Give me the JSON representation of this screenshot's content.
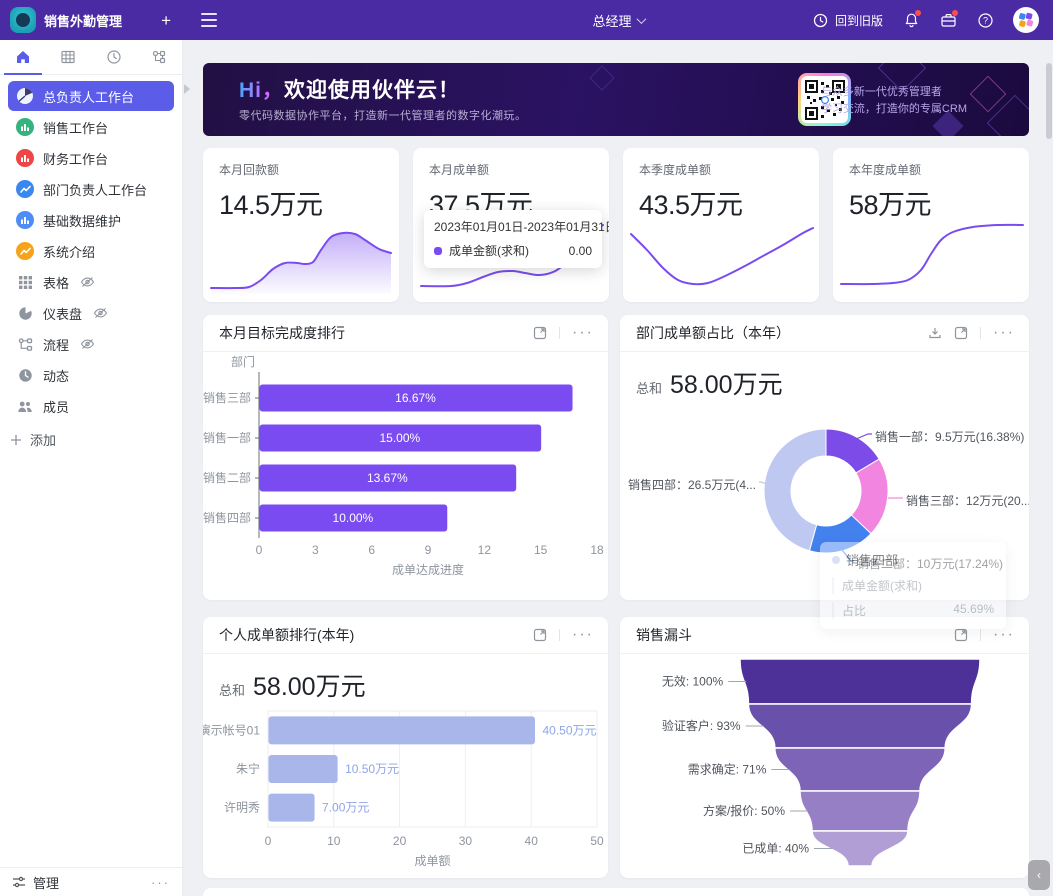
{
  "topbar": {
    "app_title": "销售外勤管理",
    "role": "总经理",
    "back_to_old_label": "回到旧版"
  },
  "sidebar": {
    "tabs": [
      {
        "name": "home",
        "active": true
      },
      {
        "name": "table",
        "active": false
      },
      {
        "name": "clock",
        "active": false
      },
      {
        "name": "flow",
        "active": false
      }
    ],
    "items": [
      {
        "label": "总负责人工作台",
        "icon": "pie-white",
        "bg": "#5b5ce8",
        "active": true,
        "eye": false
      },
      {
        "label": "销售工作台",
        "icon": "bars",
        "bg": "#35b37e",
        "active": false,
        "eye": false
      },
      {
        "label": "财务工作台",
        "icon": "bars",
        "bg": "#ee4646",
        "active": false,
        "eye": false
      },
      {
        "label": "部门负责人工作台",
        "icon": "line",
        "bg": "#3b87f0",
        "active": false,
        "eye": false
      },
      {
        "label": "基础数据维护",
        "icon": "bars",
        "bg": "#4f8df6",
        "active": false,
        "eye": false
      },
      {
        "label": "系统介绍",
        "icon": "line",
        "bg": "#f5a31b",
        "active": false,
        "eye": false
      },
      {
        "label": "表格",
        "icon": "grid-gray",
        "bg": "",
        "active": false,
        "eye": true
      },
      {
        "label": "仪表盘",
        "icon": "pie-gray",
        "bg": "",
        "active": false,
        "eye": true
      },
      {
        "label": "流程",
        "icon": "flow-gray",
        "bg": "",
        "active": false,
        "eye": true
      },
      {
        "label": "动态",
        "icon": "clock-gray",
        "bg": "",
        "active": false,
        "eye": false
      },
      {
        "label": "成员",
        "icon": "people-gray",
        "bg": "",
        "active": false,
        "eye": false
      }
    ],
    "add_label": "添加",
    "footer_label": "管理"
  },
  "banner": {
    "title_hi": "Hi，",
    "title_rest": "欢迎使用伙伴云！",
    "subtitle": "零代码数据协作平台，打造新一代管理者的数字化潮玩。",
    "qr_caption_line1": "与众多新一代优秀管理者",
    "qr_caption_line2": "学习交流，打造你的专属CRM"
  },
  "stats": [
    {
      "label": "本月回款额",
      "value": "14.5万元"
    },
    {
      "label": "本月成单额",
      "value": "37.5万元",
      "tooltip": {
        "date_range": "2023年01月01日-2023年01月31日",
        "series": "成单金额(求和)",
        "value": "0.00"
      }
    },
    {
      "label": "本季度成单额",
      "value": "43.5万元"
    },
    {
      "label": "本年度成单额",
      "value": "58万元"
    }
  ],
  "panels": {
    "target_ranking_title": "本月目标完成度排行",
    "dept_share_title": "部门成单额占比（本年）",
    "personal_ranking_title": "个人成单额排行(本年)",
    "funnel_title": "销售漏斗"
  },
  "chart_data": [
    {
      "id": "dept_target",
      "type": "bar",
      "orientation": "horizontal",
      "title": "本月目标完成度排行",
      "categories": [
        "销售三部",
        "销售一部",
        "销售二部",
        "销售四部"
      ],
      "values": [
        16.67,
        15.0,
        13.67,
        10.0
      ],
      "value_labels": [
        "16.67%",
        "15.00%",
        "13.67%",
        "10.00%"
      ],
      "xlabel": "成单达成进度",
      "ylabel": "部门",
      "xlim": [
        0,
        18
      ],
      "xticks": [
        0,
        3,
        6,
        9,
        12,
        15,
        18
      ],
      "bar_color": "#7a4bf0",
      "grid": false,
      "legend": "none"
    },
    {
      "id": "dept_share",
      "type": "pie",
      "title": "部门成单额占比（本年）",
      "total_label": "总和",
      "total_value": "58.00万元",
      "slices": [
        {
          "name": "销售一部",
          "value": 9.5,
          "pct": 16.38,
          "label": "销售一部：9.5万元(16.38%)",
          "color": "#7c4be8"
        },
        {
          "name": "销售三部",
          "value": 12,
          "pct": 20.69,
          "label": "销售三部：12万元(20....",
          "color": "#f285e0"
        },
        {
          "name": "销售二部",
          "value": 10,
          "pct": 17.24,
          "label": "销售二部：10万元(17.24%)",
          "color": "#4381ee"
        },
        {
          "name": "销售四部",
          "value": 26.5,
          "pct": 45.69,
          "label": "销售四部：26.5万元(4...",
          "color": "#bfc8f0"
        }
      ],
      "tooltip": {
        "title": "销售四部",
        "row1_label": "成单金额(求和)",
        "row1_value": "",
        "row2_label": "占比",
        "row2_value": "45.69%"
      }
    },
    {
      "id": "personal",
      "type": "bar",
      "orientation": "horizontal",
      "title": "个人成单额排行(本年)",
      "total_label": "总和",
      "total_value": "58.00万元",
      "categories": [
        "演示帐号01",
        "朱宁",
        "许明秀"
      ],
      "values": [
        40.5,
        10.5,
        7.0
      ],
      "value_labels": [
        "40.50万元",
        "10.50万元",
        "7.00万元"
      ],
      "xlabel": "成单额",
      "xlim": [
        0,
        50
      ],
      "xticks": [
        0,
        10,
        20,
        30,
        40,
        50
      ],
      "bar_color": "#a9b6ea",
      "value_color": "#8fa5e6",
      "grid": true,
      "legend": "none"
    },
    {
      "id": "funnel",
      "type": "funnel",
      "title": "销售漏斗",
      "stages": [
        {
          "label": "无效: 100%",
          "pct": 100,
          "color": "#4e3099"
        },
        {
          "label": "验证客户: 93%",
          "pct": 93,
          "color": "#6950ab"
        },
        {
          "label": "需求确定: 71%",
          "pct": 71,
          "color": "#7d64b6"
        },
        {
          "label": "方案/报价: 50%",
          "pct": 50,
          "color": "#967fc5"
        },
        {
          "label": "已成单: 40%",
          "pct": 40,
          "color": "#b19ed5"
        }
      ]
    },
    {
      "id": "stat_trends",
      "type": "line",
      "note": "sparklines of the four stat cards, normalized svg coords 196x84",
      "series": [
        {
          "name": "本月回款额",
          "style": "area",
          "points": [
            [
              8,
              70
            ],
            [
              32,
              70
            ],
            [
              46,
              69
            ],
            [
              58,
              62
            ],
            [
              70,
              51
            ],
            [
              82,
              45
            ],
            [
              94,
              45
            ],
            [
              102,
              46
            ],
            [
              110,
              44
            ],
            [
              118,
              32
            ],
            [
              128,
              19
            ],
            [
              140,
              15
            ],
            [
              152,
              16
            ],
            [
              162,
              22
            ],
            [
              176,
              31
            ],
            [
              188,
              35
            ]
          ]
        },
        {
          "name": "本月成单额",
          "style": "line",
          "points": [
            [
              8,
              68
            ],
            [
              38,
              68
            ],
            [
              54,
              65
            ],
            [
              70,
              59
            ],
            [
              85,
              54
            ],
            [
              100,
              53
            ],
            [
              112,
              55
            ],
            [
              124,
              57
            ],
            [
              134,
              56
            ],
            [
              144,
              52
            ],
            [
              156,
              42
            ],
            [
              170,
              24
            ],
            [
              182,
              12
            ],
            [
              190,
              7
            ]
          ]
        },
        {
          "name": "本季度成单额",
          "style": "line",
          "points": [
            [
              8,
              16
            ],
            [
              24,
              32
            ],
            [
              40,
              50
            ],
            [
              55,
              62
            ],
            [
              70,
              66
            ],
            [
              85,
              65
            ],
            [
              100,
              59
            ],
            [
              120,
              49
            ],
            [
              140,
              38
            ],
            [
              160,
              27
            ],
            [
              180,
              15
            ],
            [
              190,
              10
            ]
          ]
        },
        {
          "name": "本年度成单额",
          "style": "line",
          "points": [
            [
              8,
              66
            ],
            [
              40,
              66
            ],
            [
              60,
              65
            ],
            [
              75,
              62
            ],
            [
              88,
              52
            ],
            [
              98,
              36
            ],
            [
              108,
              22
            ],
            [
              120,
              14
            ],
            [
              140,
              9
            ],
            [
              165,
              7
            ],
            [
              190,
              7
            ]
          ]
        }
      ],
      "line_color": "#7a4cf0"
    }
  ]
}
